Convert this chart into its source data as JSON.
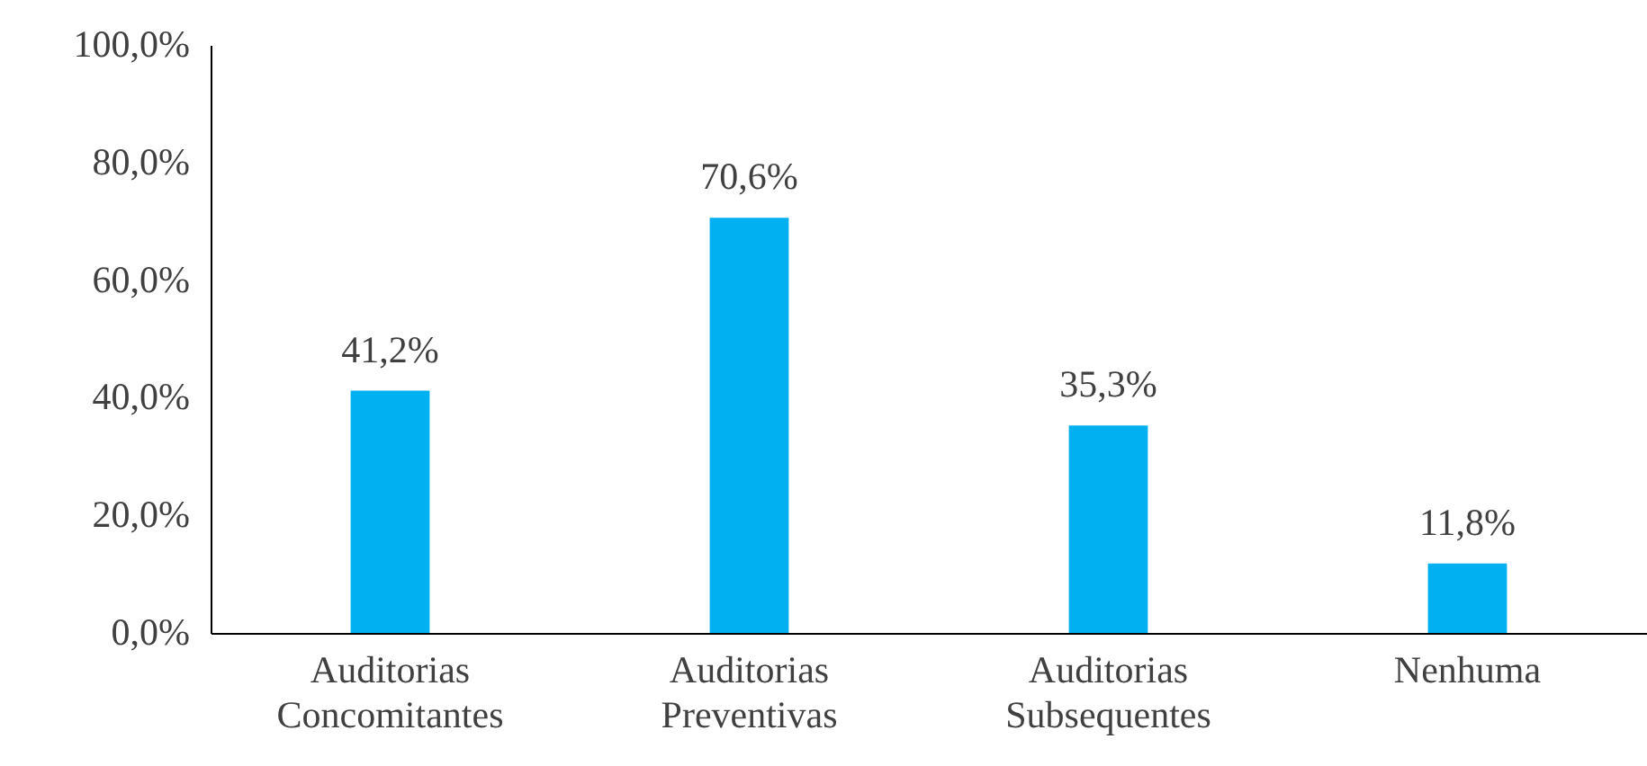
{
  "chart_data": {
    "type": "bar",
    "categories": [
      "Auditorias Concomitantes",
      "Auditorias Preventivas",
      "Auditorias Subsequentes",
      "Nenhuma"
    ],
    "values": [
      41.2,
      70.6,
      35.3,
      11.8
    ],
    "value_labels": [
      "41,2%",
      "70,6%",
      "35,3%",
      "11,8%"
    ],
    "color": "#00b0f0",
    "ylim": [
      0,
      100
    ],
    "yticks": [
      {
        "value": 0,
        "label": "0,0%"
      },
      {
        "value": 20,
        "label": "20,0%"
      },
      {
        "value": 40,
        "label": "40,0%"
      },
      {
        "value": 60,
        "label": "60,0%"
      },
      {
        "value": 80,
        "label": "80,0%"
      },
      {
        "value": 100,
        "label": "100,0%"
      }
    ],
    "grid": false
  }
}
